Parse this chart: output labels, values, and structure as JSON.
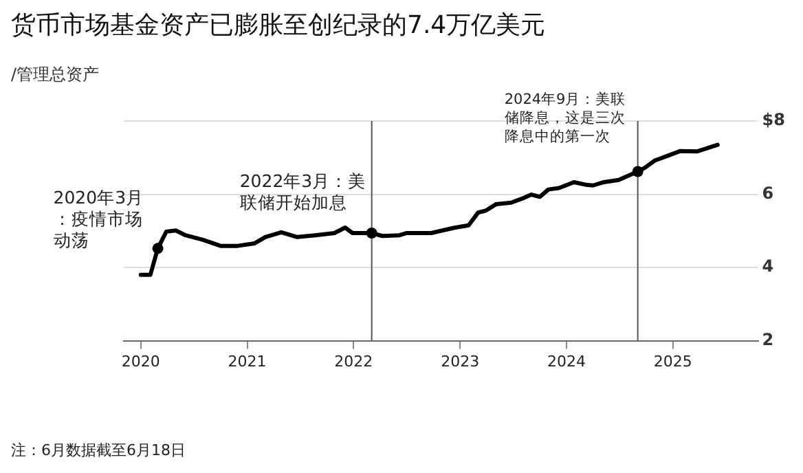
{
  "chart_data": {
    "type": "line",
    "title": "货币市场基金资产已膨胀至创纪录的7.4万亿美元",
    "subtitle": "/管理总资产",
    "x": [
      2020.0,
      2020.09,
      2020.16,
      2020.24,
      2020.33,
      2020.42,
      2020.58,
      2020.75,
      2020.91,
      2021.07,
      2021.17,
      2021.32,
      2021.47,
      2021.64,
      2021.82,
      2021.92,
      2021.99,
      2022.17,
      2022.27,
      2022.43,
      2022.5,
      2022.73,
      2022.94,
      2023.08,
      2023.17,
      2023.24,
      2023.34,
      2023.48,
      2023.6,
      2023.67,
      2023.75,
      2023.83,
      2023.93,
      2024.07,
      2024.18,
      2024.25,
      2024.35,
      2024.49,
      2024.67,
      2024.74,
      2024.83,
      2024.95,
      2025.07,
      2025.23,
      2025.42
    ],
    "series": [
      {
        "color": "#000000",
        "values": [
          3.8,
          3.8,
          4.52,
          4.98,
          5.01,
          4.88,
          4.76,
          4.59,
          4.59,
          4.66,
          4.83,
          4.96,
          4.83,
          4.88,
          4.94,
          5.09,
          4.94,
          4.94,
          4.86,
          4.88,
          4.94,
          4.94,
          5.08,
          5.15,
          5.5,
          5.55,
          5.73,
          5.77,
          5.9,
          5.99,
          5.93,
          6.13,
          6.17,
          6.33,
          6.26,
          6.24,
          6.33,
          6.39,
          6.62,
          6.73,
          6.92,
          7.05,
          7.18,
          7.17,
          7.35
        ]
      }
    ],
    "xlim": [
      2019.84,
      2025.8
    ],
    "xticks": [
      2020,
      2021,
      2022,
      2023,
      2024,
      2025
    ],
    "ylim": [
      2,
      8
    ],
    "yticks": [
      2,
      4,
      6,
      {
        "value": 8,
        "label": "$8"
      }
    ],
    "grid": "y",
    "legend": false,
    "marker": "none",
    "line_style": "solid",
    "ref_lines": [
      {
        "axis": "x",
        "value": 2022.17,
        "color": "#555555"
      },
      {
        "axis": "x",
        "value": 2024.67,
        "color": "#555555"
      }
    ],
    "annotations": [
      {
        "text": "2020年3月：疫情市场动荡",
        "x": 2020.16,
        "y": 4.52
      },
      {
        "text": "2022年3月：美联储开始加息",
        "x": 2022.17,
        "y": 4.94
      },
      {
        "text": "2024年9月：美联储降息，这是三次降息中的第一次",
        "x": 2024.67,
        "y": 6.62
      },
      "注：6月数据截至6月18日"
    ]
  }
}
